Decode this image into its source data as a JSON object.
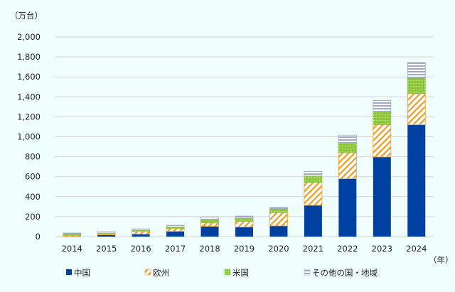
{
  "chart_data": {
    "type": "bar",
    "stacked": true,
    "title": "",
    "ylabel": "（万台）",
    "xlabel": "（年）",
    "ylim": [
      0,
      2000
    ],
    "yticks": [
      "0",
      "200",
      "400",
      "600",
      "800",
      "1,000",
      "1,200",
      "1,400",
      "1,600",
      "1,800",
      "2,000"
    ],
    "grid": true,
    "legend_position": "bottom",
    "categories": [
      "2014",
      "2015",
      "2016",
      "2017",
      "2018",
      "2019",
      "2020",
      "2021",
      "2022",
      "2023",
      "2024"
    ],
    "series": [
      {
        "name": "中国",
        "color": "#0040a0",
        "pattern": "solid",
        "values": [
          2,
          17,
          24,
          52,
          102,
          95,
          107,
          313,
          579,
          797,
          1120
        ]
      },
      {
        "name": "欧州",
        "color": "#f39a1e",
        "pattern": "diagonal",
        "values": [
          10,
          9,
          28,
          28,
          35,
          57,
          133,
          230,
          263,
          323,
          313
        ]
      },
      {
        "name": "米国",
        "color": "#8cc63f",
        "pattern": "dots",
        "values": [
          12,
          10,
          14,
          17,
          31,
          33,
          36,
          64,
          98,
          133,
          155
        ]
      },
      {
        "name": "その他の国・地域",
        "color": "#a0aabf",
        "pattern": "horizontal",
        "values": [
          12,
          14,
          12,
          17,
          29,
          21,
          16,
          46,
          76,
          112,
          156
        ]
      }
    ]
  }
}
